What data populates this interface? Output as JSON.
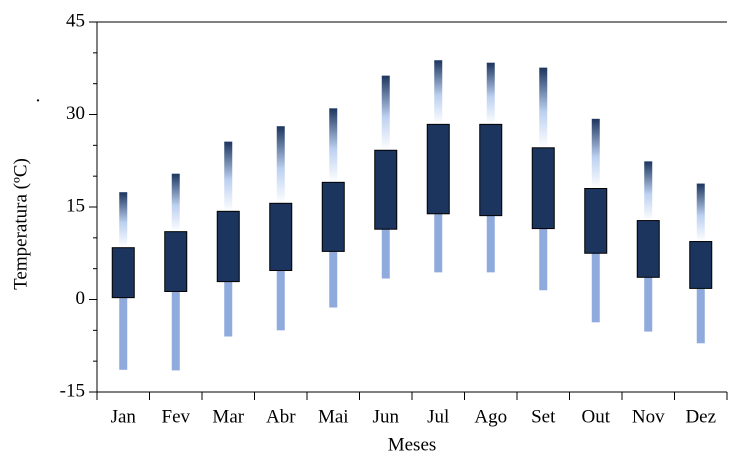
{
  "chart_data": {
    "type": "range-box",
    "y_label": "Temperatura (ºC)",
    "x_label": "Meses",
    "annotation": ".",
    "categories": [
      "Jan",
      "Fev",
      "Mar",
      "Abr",
      "Mai",
      "Jun",
      "Jul",
      "Ago",
      "Set",
      "Out",
      "Nov",
      "Dez"
    ],
    "low": [
      -11.4,
      -11.5,
      -6.0,
      -5.0,
      -1.3,
      3.4,
      4.4,
      4.4,
      1.5,
      -3.7,
      -5.2,
      -7.1
    ],
    "box_low": [
      0.3,
      1.3,
      2.9,
      4.7,
      7.8,
      11.4,
      13.9,
      13.6,
      11.5,
      7.5,
      3.6,
      1.8
    ],
    "box_high": [
      8.4,
      11.0,
      14.3,
      15.6,
      19.0,
      24.2,
      28.4,
      28.4,
      24.6,
      18.0,
      12.8,
      9.4
    ],
    "high": [
      17.4,
      20.4,
      25.6,
      28.1,
      31.0,
      36.3,
      38.8,
      38.4,
      37.6,
      29.3,
      22.4,
      18.8
    ],
    "box_color": "#1c355e",
    "low_color": "#8faadc",
    "high_color": "#1c355e",
    "ylim": [
      -15,
      45
    ],
    "yticks": [
      -15,
      0,
      15,
      30,
      45
    ],
    "yminor_step": 5
  }
}
